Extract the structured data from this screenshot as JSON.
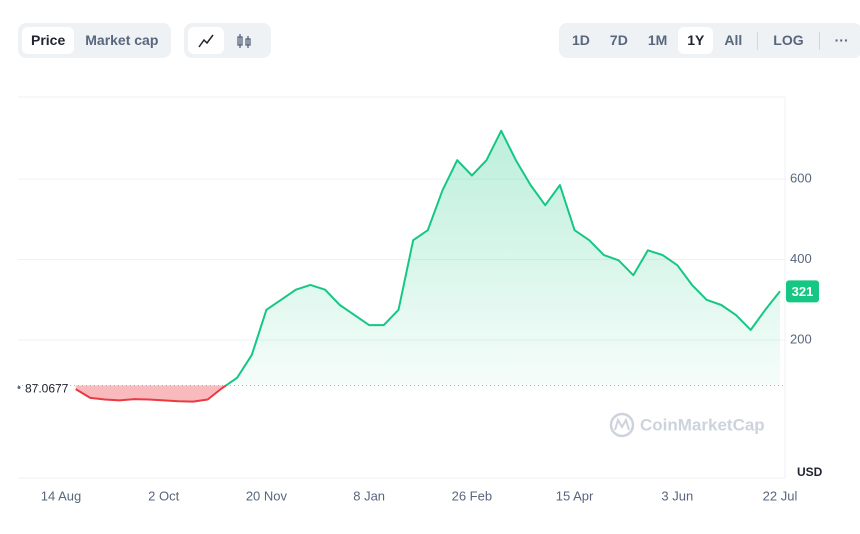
{
  "toolbar": {
    "tabs": [
      "Price",
      "Market cap"
    ],
    "ranges": [
      "1D",
      "7D",
      "1M",
      "1Y",
      "All"
    ],
    "log": "LOG",
    "more": "···"
  },
  "chart_data": {
    "type": "line",
    "categories": [
      "14 Aug",
      null,
      null,
      null,
      null,
      null,
      null,
      "2 Oct",
      null,
      null,
      null,
      null,
      null,
      null,
      "20 Nov",
      null,
      null,
      null,
      null,
      null,
      null,
      "8 Jan",
      null,
      null,
      null,
      null,
      null,
      null,
      "26 Feb",
      null,
      null,
      null,
      null,
      null,
      null,
      "15 Apr",
      null,
      null,
      null,
      null,
      null,
      null,
      "3 Jun",
      null,
      null,
      null,
      null,
      null,
      null,
      "22 Jul"
    ],
    "values": [
      null,
      78,
      56,
      52,
      50,
      53,
      52,
      50,
      48,
      47,
      52,
      81,
      106,
      163,
      275,
      300,
      325,
      337,
      325,
      287,
      262,
      237,
      237,
      275,
      448,
      473,
      572,
      647,
      609,
      647,
      720,
      647,
      585,
      535,
      585,
      473,
      448,
      411,
      398,
      361,
      423,
      411,
      386,
      337,
      300,
      287,
      262,
      225,
      275,
      321
    ],
    "up_color": "#16c784",
    "down_color": "#ea3943",
    "baseline": 87.0677,
    "current_value": 321,
    "ylim": [
      -143,
      804
    ],
    "yticks": [
      200,
      400,
      600
    ],
    "grid": true,
    "y_unit": "USD",
    "watermark": "CoinMarketCap"
  }
}
